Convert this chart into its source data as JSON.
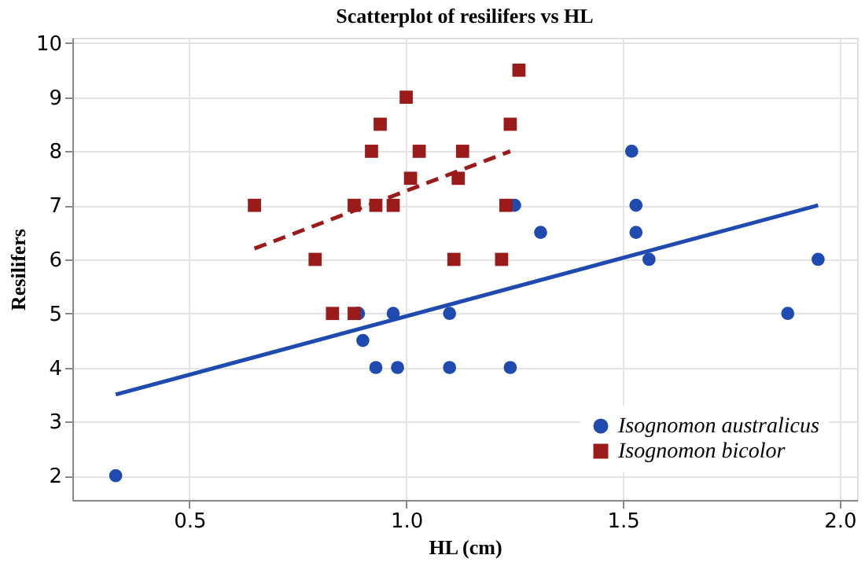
{
  "chart_data": {
    "type": "scatter",
    "title": "Scatterplot of resilifers vs HL",
    "xlabel": "HL (cm)",
    "ylabel": "Resilifers",
    "xlim": [
      0.23,
      2.04
    ],
    "ylim": [
      1.55,
      10.1
    ],
    "xticks": [
      0.5,
      {
        "value": 1,
        "label": "1.0"
      },
      1.5,
      {
        "value": 2,
        "label": "2.0"
      }
    ],
    "yticks": [
      2,
      3,
      4,
      5,
      6,
      7,
      8,
      9,
      10
    ],
    "grid": true,
    "legend": "bottom right",
    "series": [
      {
        "name": "Isognomon australicus",
        "type": "scatter",
        "marker": "circle",
        "color": "#1f4bb0",
        "x": [
          0.33,
          0.89,
          0.9,
          0.93,
          0.97,
          0.98,
          1.1,
          1.1,
          1.24,
          1.25,
          1.31,
          1.52,
          1.53,
          1.53,
          1.56,
          1.88,
          1.95
        ],
        "values": [
          2,
          5,
          4.5,
          4,
          5,
          4,
          5,
          4,
          4,
          7,
          6.5,
          8,
          7,
          6.5,
          6,
          5,
          6
        ]
      },
      {
        "name": "Isognomon bicolor",
        "type": "scatter",
        "marker": "square",
        "color": "#9b1b1b",
        "x": [
          0.65,
          0.79,
          0.83,
          0.88,
          0.88,
          0.92,
          0.93,
          0.94,
          0.97,
          1.0,
          1.01,
          1.03,
          1.11,
          1.12,
          1.13,
          1.22,
          1.23,
          1.24,
          1.26
        ],
        "values": [
          7,
          6,
          5,
          5,
          7,
          8,
          7,
          8.5,
          7,
          9,
          7.5,
          8,
          6,
          7.5,
          8,
          6,
          7,
          8.5,
          9.5
        ]
      },
      {
        "type": "line",
        "line_style": "solid",
        "color": "#1f4bb0",
        "x": [
          0.33,
          1.95
        ],
        "values": [
          3.5,
          7
        ]
      },
      {
        "type": "line",
        "line_style": "dashed",
        "color": "#9b1b1b",
        "x": [
          0.65,
          1.24
        ],
        "values": [
          6.2,
          8
        ]
      }
    ]
  }
}
